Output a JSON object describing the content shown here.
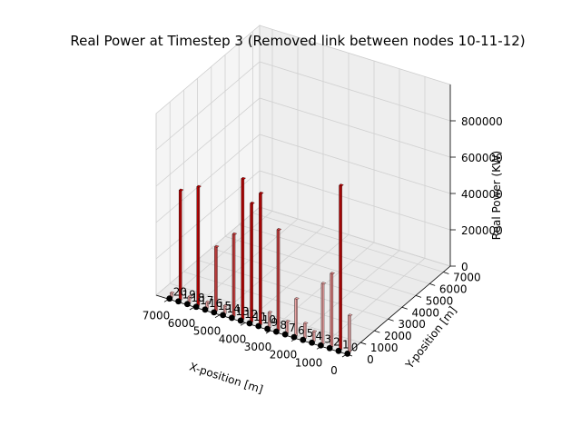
{
  "chart_data": {
    "type": "bar3d",
    "title": "Real Power at Timestep 3 (Removed link between nodes 10-11-12)",
    "xlabel": "X-position [m]",
    "ylabel": "Y-position [m]",
    "zlabel": "Real Power (KW)",
    "xlim": [
      0,
      7500
    ],
    "ylim": [
      0,
      7500
    ],
    "zlim": [
      0,
      1000000
    ],
    "x_ticks": [
      0,
      1000,
      2000,
      3000,
      4000,
      5000,
      6000,
      7000
    ],
    "y_ticks": [
      0,
      1000,
      2000,
      3000,
      4000,
      5000,
      6000,
      7000
    ],
    "z_ticks": [
      0,
      200000,
      400000,
      600000,
      800000
    ],
    "x_tick_labels": [
      "0",
      "1000",
      "2000",
      "3000",
      "4000",
      "5000",
      "6000",
      "7000"
    ],
    "y_tick_labels": [
      "0",
      "1000",
      "2000",
      "3000",
      "4000",
      "5000",
      "6000",
      "7000"
    ],
    "z_tick_labels": [
      "0",
      "200000",
      "400000",
      "600000",
      "800000"
    ],
    "grid": true,
    "colors": {
      "bar_high": "#c00000",
      "bar_low": "#e8a0a0",
      "node": "#000000",
      "pane": "#f2f2f2",
      "grid": "#d0d0d0"
    },
    "node_labels": [
      "0",
      "1",
      "2",
      "3",
      "4",
      "5",
      "6",
      "7",
      "8",
      "9",
      "10",
      "11",
      "12",
      "13",
      "14",
      "15",
      "16",
      "17",
      "18",
      "19",
      "20"
    ],
    "bars": [
      {
        "x": 0,
        "y": 250,
        "value": 200000,
        "color": "#e8a0a0"
      },
      {
        "x": 350,
        "y": 250,
        "value": 900000,
        "color": "#c00000"
      },
      {
        "x": 700,
        "y": 250,
        "value": 400000,
        "color": "#e08080"
      },
      {
        "x": 1050,
        "y": 250,
        "value": 330000,
        "color": "#e8a0a0"
      },
      {
        "x": 1400,
        "y": 250,
        "value": 50000,
        "color": "#e8a0a0"
      },
      {
        "x": 1750,
        "y": 250,
        "value": 80000,
        "color": "#e8a0a0"
      },
      {
        "x": 2100,
        "y": 250,
        "value": 200000,
        "color": "#e8a0a0"
      },
      {
        "x": 2450,
        "y": 250,
        "value": 60000,
        "color": "#e8a0a0"
      },
      {
        "x": 2800,
        "y": 250,
        "value": 550000,
        "color": "#d04040"
      },
      {
        "x": 3150,
        "y": 250,
        "value": 80000,
        "color": "#e8a0a0"
      },
      {
        "x": 3500,
        "y": 250,
        "value": 720000,
        "color": "#c00000"
      },
      {
        "x": 3850,
        "y": 250,
        "value": 650000,
        "color": "#c00000"
      },
      {
        "x": 4200,
        "y": 250,
        "value": 770000,
        "color": "#c00000"
      },
      {
        "x": 4550,
        "y": 250,
        "value": 450000,
        "color": "#d04040"
      },
      {
        "x": 4900,
        "y": 250,
        "value": 40000,
        "color": "#e8a0a0"
      },
      {
        "x": 5250,
        "y": 250,
        "value": 350000,
        "color": "#d04040"
      },
      {
        "x": 5600,
        "y": 250,
        "value": 30000,
        "color": "#e8a0a0"
      },
      {
        "x": 5950,
        "y": 250,
        "value": 650000,
        "color": "#c00000"
      },
      {
        "x": 6300,
        "y": 250,
        "value": 30000,
        "color": "#e8a0a0"
      },
      {
        "x": 6650,
        "y": 250,
        "value": 600000,
        "color": "#c00000"
      },
      {
        "x": 7000,
        "y": 250,
        "value": 20000,
        "color": "#e8a0a0"
      }
    ]
  }
}
